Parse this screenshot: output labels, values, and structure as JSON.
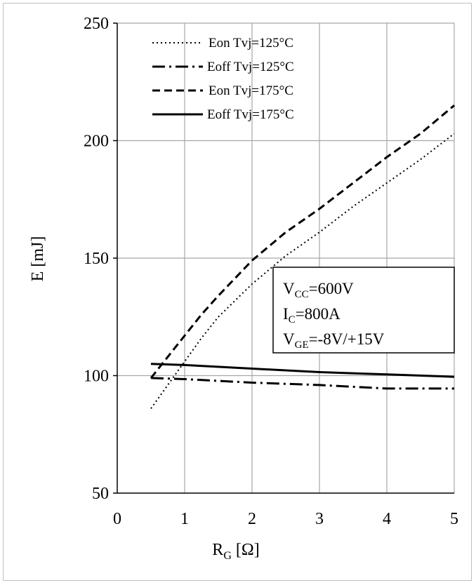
{
  "chart_data": {
    "type": "line",
    "xlabel": {
      "main": "R",
      "sub": "G",
      "unit": " [Ω]"
    },
    "ylabel": "E [mJ]",
    "xlim": [
      0,
      5
    ],
    "ylim": [
      50,
      250
    ],
    "x_ticks": [
      "0",
      "1",
      "2",
      "3",
      "4",
      "5"
    ],
    "y_ticks": [
      "50",
      "100",
      "150",
      "200",
      "250"
    ],
    "x_tick_values": [
      0,
      1,
      2,
      3,
      4,
      5
    ],
    "y_tick_values": [
      50,
      100,
      150,
      200,
      250
    ],
    "grid": true,
    "legend_position": "top-left",
    "series": [
      {
        "name": "Eon Tvj=125°C",
        "style": "dotted",
        "x": [
          0.5,
          0.75,
          1.0,
          1.25,
          1.5,
          2.0,
          2.5,
          3.0,
          3.5,
          4.0,
          4.5,
          5.0
        ],
        "y": [
          86,
          96,
          106,
          116,
          125,
          139,
          151,
          161,
          172,
          182,
          192,
          203
        ]
      },
      {
        "name": "Eoff Tvj=125°C",
        "style": "dashdot",
        "x": [
          0.5,
          1.0,
          2.0,
          3.0,
          4.0,
          5.0
        ],
        "y": [
          99,
          98.5,
          97,
          96,
          94.5,
          94.5
        ]
      },
      {
        "name": "Eon Tvj=175°C",
        "style": "dashed",
        "x": [
          0.5,
          0.75,
          1.0,
          1.25,
          1.5,
          2.0,
          2.5,
          3.0,
          3.5,
          4.0,
          4.5,
          5.0
        ],
        "y": [
          99,
          108,
          117,
          126,
          134,
          149,
          161,
          171,
          182,
          193,
          203,
          215
        ]
      },
      {
        "name": "Eoff Tvj=175°C",
        "style": "solid",
        "x": [
          0.5,
          1.0,
          2.0,
          3.0,
          4.0,
          5.0
        ],
        "y": [
          105,
          104.5,
          103,
          101.5,
          100.5,
          99.5
        ]
      }
    ],
    "annotations": [
      {
        "main": "V",
        "sub": "CC",
        "rest": "=600V"
      },
      {
        "main": "I",
        "sub": "C",
        "rest": "=800A"
      },
      {
        "main": "V",
        "sub": "GE",
        "rest": "=-8V/+15V"
      }
    ]
  }
}
